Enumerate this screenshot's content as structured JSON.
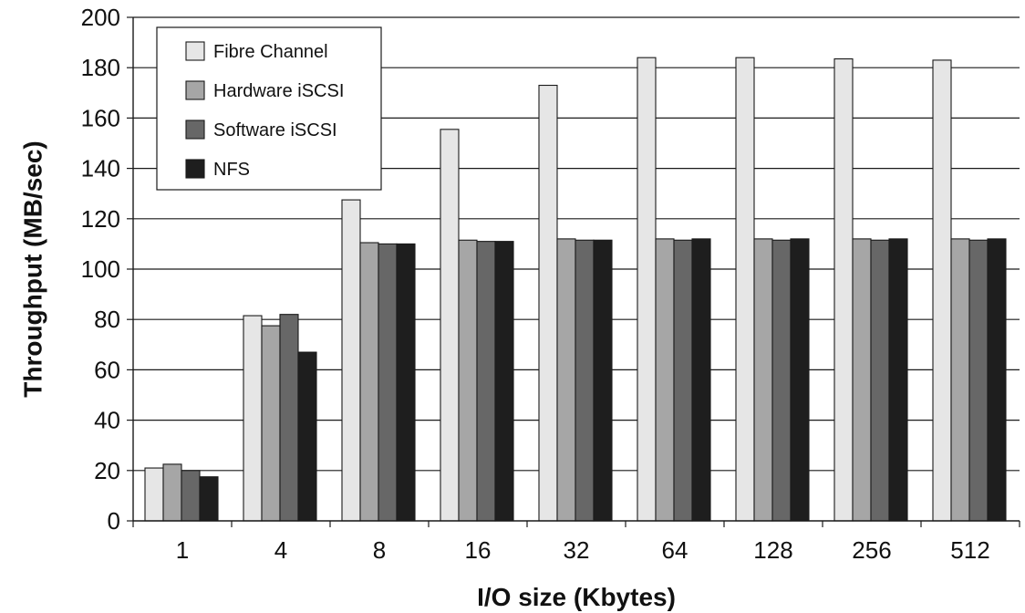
{
  "chart_data": {
    "type": "bar",
    "title": "",
    "xlabel": "I/O size (Kbytes)",
    "ylabel": "Throughput (MB/sec)",
    "categories": [
      "1",
      "4",
      "8",
      "16",
      "32",
      "64",
      "128",
      "256",
      "512"
    ],
    "ylim": [
      0,
      200
    ],
    "yticks": [
      0,
      20,
      40,
      60,
      80,
      100,
      120,
      140,
      160,
      180,
      200
    ],
    "grid": true,
    "legend_position": "top-left",
    "series": [
      {
        "name": "Fibre Channel",
        "color": "#e6e6e6",
        "values": [
          21,
          81.5,
          127.5,
          155.5,
          173,
          184,
          184,
          183.5,
          183
        ]
      },
      {
        "name": "Hardware iSCSI",
        "color": "#a6a6a6",
        "values": [
          22.5,
          77.5,
          110.5,
          111.5,
          112,
          112,
          112,
          112,
          112
        ]
      },
      {
        "name": "Software iSCSI",
        "color": "#676767",
        "values": [
          20,
          82,
          110,
          111,
          111.5,
          111.5,
          111.5,
          111.5,
          111.5
        ]
      },
      {
        "name": "NFS",
        "color": "#1e1e1e",
        "values": [
          17.5,
          67,
          110,
          111,
          111.5,
          112,
          112,
          112,
          112
        ]
      }
    ]
  }
}
